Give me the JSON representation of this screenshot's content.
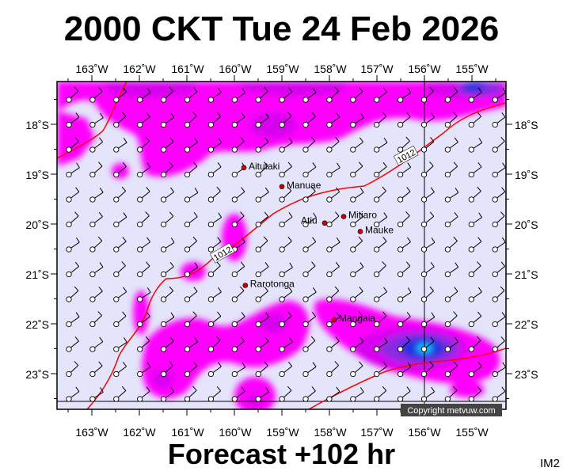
{
  "title": "2000 CKT Tue 24 Feb 2026",
  "subtitle": "Forecast +102 hr",
  "image_code": "IM2",
  "copyright": "Copyright metvuw.com",
  "lon_labels": [
    "163˚W",
    "162˚W",
    "161˚W",
    "160˚W",
    "159˚W",
    "158˚W",
    "157˚W",
    "156˚W",
    "155˚W"
  ],
  "lat_labels": [
    "18˚S",
    "19˚S",
    "20˚S",
    "21˚S",
    "22˚S",
    "23˚S"
  ],
  "isobar_labels": [
    "1012",
    "1012"
  ],
  "places": [
    {
      "name": "Aitutaki",
      "lon": -159.8,
      "lat": -18.87
    },
    {
      "name": "Manuae",
      "lon": -159.0,
      "lat": -19.25
    },
    {
      "name": "Mitiaro",
      "lon": -157.7,
      "lat": -19.85
    },
    {
      "name": "Atiu",
      "lon": -158.1,
      "lat": -19.98
    },
    {
      "name": "Mauke",
      "lon": -157.35,
      "lat": -20.15
    },
    {
      "name": "Rarotonga",
      "lon": -159.77,
      "lat": -21.23
    },
    {
      "name": "Mangaia",
      "lon": -157.9,
      "lat": -21.92
    }
  ],
  "colors": {
    "ocean": "#e4e4fa",
    "rain_light": "#ff00ff",
    "rain_medium": "#d800ee",
    "rain_heavy": "#8a2be2",
    "rain_very_heavy": "#2030e0",
    "rain_extreme": "#00c8ff",
    "isobar": "#ff0000",
    "grid": "#000000",
    "island": "#cc0000"
  }
}
